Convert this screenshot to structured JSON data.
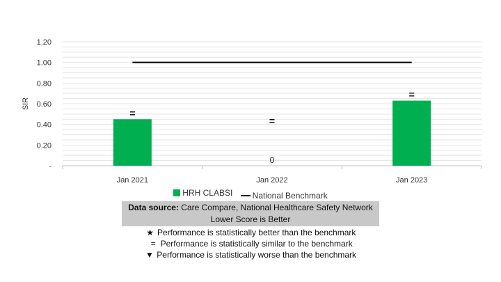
{
  "chart_data": {
    "type": "bar",
    "categories": [
      "Jan 2021",
      "Jan 2022",
      "Jan 2023"
    ],
    "series": [
      {
        "name": "HRH CLABSI",
        "values": [
          0.45,
          0,
          0.63
        ],
        "color": "#00b050"
      }
    ],
    "benchmark": {
      "name": "National Benchmark",
      "value": 1.0,
      "color": "#000000"
    },
    "comparison_marks": [
      "=",
      "=",
      "="
    ],
    "data_labels": [
      "",
      "0",
      ""
    ],
    "ylabel": "SIR",
    "ylim": [
      0,
      1.2
    ],
    "yticks": [
      {
        "value": 0,
        "label": "-"
      },
      {
        "value": 0.2,
        "label": "0.20"
      },
      {
        "value": 0.4,
        "label": "0.40"
      },
      {
        "value": 0.6,
        "label": "0.60"
      },
      {
        "value": 0.8,
        "label": "0.80"
      },
      {
        "value": 1.0,
        "label": "1.00"
      },
      {
        "value": 1.2,
        "label": "1.20"
      }
    ],
    "grid": true,
    "legend_position": "bottom"
  },
  "source": {
    "prefix": "Data source:",
    "text": " Care Compare, National Healthcare Safety Network",
    "line2": "Lower Score is Better"
  },
  "notes": [
    {
      "symbol": "★",
      "text": "Performance is statistically better than the benchmark"
    },
    {
      "symbol": "=",
      "text": "Performance is statistically similar to the benchmark"
    },
    {
      "symbol": "▼",
      "text": "Performance is statistically worse than the benchmark"
    }
  ]
}
